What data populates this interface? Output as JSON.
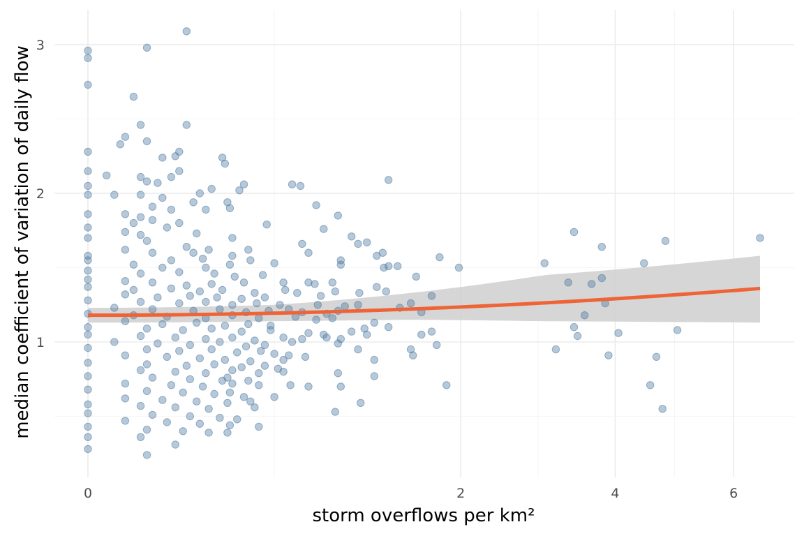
{
  "chart_data": {
    "type": "scatter",
    "title": "",
    "xlabel": "storm overflows per km²",
    "ylabel": "median coefficient of variation of daily flow",
    "x_scale": "sqrt",
    "x_ticks": [
      0,
      2,
      4,
      6
    ],
    "y_ticks": [
      1,
      2,
      3
    ],
    "xlim": [
      0,
      6.5
    ],
    "ylim": [
      0.2,
      3.1
    ],
    "grid": true,
    "legend": "none",
    "point_color": "#4a78a0",
    "trend_color": "#ee6436",
    "band_color": "#cfcfcf",
    "trend": {
      "x": [
        0,
        6.5
      ],
      "y": [
        1.18,
        1.36
      ]
    },
    "confidence_band": {
      "x": [
        0,
        0.5,
        1.5,
        3,
        6.5
      ],
      "upper": [
        1.23,
        1.25,
        1.33,
        1.45,
        1.58
      ],
      "lower": [
        1.13,
        1.14,
        1.15,
        1.14,
        1.13
      ]
    },
    "points": [
      [
        0,
        2.96
      ],
      [
        0,
        2.91
      ],
      [
        0,
        2.73
      ],
      [
        0.05,
        2.98
      ],
      [
        0.14,
        3.09
      ],
      [
        0.03,
        2.65
      ],
      [
        0.04,
        2.46
      ],
      [
        0.14,
        2.46
      ],
      [
        0.02,
        2.38
      ],
      [
        0.05,
        2.35
      ],
      [
        0.015,
        2.33
      ],
      [
        0,
        2.28
      ],
      [
        0.12,
        2.28
      ],
      [
        0.08,
        2.24
      ],
      [
        0.11,
        2.25
      ],
      [
        0.26,
        2.24
      ],
      [
        0.27,
        2.2
      ],
      [
        0,
        2.15
      ],
      [
        0.12,
        2.15
      ],
      [
        0.005,
        2.12
      ],
      [
        0.04,
        2.11
      ],
      [
        0.1,
        2.11
      ],
      [
        0.05,
        2.08
      ],
      [
        0,
        2.05
      ],
      [
        0.07,
        2.07
      ],
      [
        0.22,
        2.03
      ],
      [
        0.35,
        2.06
      ],
      [
        0.6,
        2.06
      ],
      [
        0.65,
        2.05
      ],
      [
        1.3,
        2.09
      ],
      [
        0.18,
        2.0
      ],
      [
        0.33,
        2.02
      ],
      [
        0,
        1.99
      ],
      [
        0.01,
        1.99
      ],
      [
        0.04,
        1.99
      ],
      [
        0.08,
        1.97
      ],
      [
        0.28,
        1.94
      ],
      [
        0.29,
        1.9
      ],
      [
        0.16,
        1.94
      ],
      [
        0.75,
        1.92
      ],
      [
        0.06,
        1.91
      ],
      [
        0.1,
        1.89
      ],
      [
        0.2,
        1.89
      ],
      [
        0.9,
        1.85
      ],
      [
        0,
        1.86
      ],
      [
        0.02,
        1.86
      ],
      [
        0.04,
        1.84
      ],
      [
        0.06,
        1.82
      ],
      [
        0.12,
        1.8
      ],
      [
        0.03,
        1.8
      ],
      [
        0,
        1.77
      ],
      [
        0.46,
        1.79
      ],
      [
        0.8,
        1.76
      ],
      [
        0.09,
        1.77
      ],
      [
        0.17,
        1.73
      ],
      [
        0.02,
        1.74
      ],
      [
        0.04,
        1.72
      ],
      [
        0.3,
        1.7
      ],
      [
        1.0,
        1.71
      ],
      [
        1.12,
        1.67
      ],
      [
        1.05,
        1.66
      ],
      [
        0.66,
        1.66
      ],
      [
        3.4,
        1.74
      ],
      [
        3.8,
        1.64
      ],
      [
        4.8,
        1.68
      ],
      [
        6.5,
        1.7
      ],
      [
        0,
        1.7
      ],
      [
        0.05,
        1.68
      ],
      [
        0.14,
        1.64
      ],
      [
        0.37,
        1.62
      ],
      [
        0.7,
        1.6
      ],
      [
        0.21,
        1.62
      ],
      [
        1.25,
        1.6
      ],
      [
        0.02,
        1.62
      ],
      [
        0.06,
        1.6
      ],
      [
        0.16,
        1.6
      ],
      [
        0.3,
        1.58
      ],
      [
        0,
        1.58
      ],
      [
        0.1,
        1.55
      ],
      [
        0.19,
        1.56
      ],
      [
        0.38,
        1.55
      ],
      [
        0.92,
        1.55
      ],
      [
        1.2,
        1.58
      ],
      [
        1.78,
        1.57
      ],
      [
        0,
        1.55
      ],
      [
        0.03,
        1.52
      ],
      [
        0.08,
        1.5
      ],
      [
        0.2,
        1.5
      ],
      [
        0.29,
        1.52
      ],
      [
        0.5,
        1.53
      ],
      [
        0.92,
        1.52
      ],
      [
        1.26,
        1.5
      ],
      [
        1.3,
        1.51
      ],
      [
        1.38,
        1.51
      ],
      [
        1.98,
        1.5
      ],
      [
        3.0,
        1.53
      ],
      [
        4.45,
        1.53
      ],
      [
        0,
        1.48
      ],
      [
        0.04,
        1.46
      ],
      [
        0.12,
        1.47
      ],
      [
        0.23,
        1.46
      ],
      [
        0.31,
        1.44
      ],
      [
        0.44,
        1.45
      ],
      [
        1.55,
        1.44
      ],
      [
        3.8,
        1.43
      ],
      [
        0,
        1.42
      ],
      [
        0.02,
        1.41
      ],
      [
        0.06,
        1.4
      ],
      [
        0.14,
        1.38
      ],
      [
        0.22,
        1.39
      ],
      [
        0.35,
        1.4
      ],
      [
        0.55,
        1.4
      ],
      [
        0.7,
        1.4
      ],
      [
        0.74,
        1.39
      ],
      [
        0.86,
        1.4
      ],
      [
        1.2,
        1.37
      ],
      [
        1.28,
        1.34
      ],
      [
        3.65,
        1.39
      ],
      [
        3.32,
        1.4
      ],
      [
        0,
        1.37
      ],
      [
        0.03,
        1.35
      ],
      [
        0.1,
        1.36
      ],
      [
        0.18,
        1.34
      ],
      [
        0.26,
        1.35
      ],
      [
        0.4,
        1.33
      ],
      [
        0.56,
        1.35
      ],
      [
        0.63,
        1.33
      ],
      [
        0.88,
        1.34
      ],
      [
        1.06,
        1.33
      ],
      [
        0.02,
        1.32
      ],
      [
        0.07,
        1.3
      ],
      [
        0.15,
        1.31
      ],
      [
        0.24,
        1.3
      ],
      [
        0.34,
        1.29
      ],
      [
        0.45,
        1.3
      ],
      [
        0.78,
        1.31
      ],
      [
        1.7,
        1.31
      ],
      [
        0,
        1.28
      ],
      [
        0.04,
        1.27
      ],
      [
        0.12,
        1.26
      ],
      [
        0.2,
        1.27
      ],
      [
        0.3,
        1.25
      ],
      [
        0.41,
        1.26
      ],
      [
        0.53,
        1.25
      ],
      [
        0.76,
        1.25
      ],
      [
        0.95,
        1.24
      ],
      [
        1.05,
        1.25
      ],
      [
        1.5,
        1.26
      ],
      [
        3.85,
        1.26
      ],
      [
        0.01,
        1.23
      ],
      [
        0.06,
        1.22
      ],
      [
        0.16,
        1.21
      ],
      [
        0.25,
        1.22
      ],
      [
        0.36,
        1.2
      ],
      [
        0.47,
        1.21
      ],
      [
        0.58,
        1.22
      ],
      [
        0.66,
        1.2
      ],
      [
        0.82,
        1.19
      ],
      [
        0.9,
        1.21
      ],
      [
        1.4,
        1.23
      ],
      [
        1.6,
        1.2
      ],
      [
        3.55,
        1.18
      ],
      [
        0,
        1.19
      ],
      [
        0.03,
        1.18
      ],
      [
        0.09,
        1.17
      ],
      [
        0.2,
        1.16
      ],
      [
        0.3,
        1.18
      ],
      [
        0.42,
        1.16
      ],
      [
        0.62,
        1.17
      ],
      [
        0.75,
        1.15
      ],
      [
        0.86,
        1.16
      ],
      [
        1.18,
        1.13
      ],
      [
        0.02,
        1.14
      ],
      [
        0.08,
        1.12
      ],
      [
        0.17,
        1.13
      ],
      [
        0.27,
        1.11
      ],
      [
        0.37,
        1.12
      ],
      [
        0.48,
        1.11
      ],
      [
        0.0,
        1.1
      ],
      [
        0.05,
        1.09
      ],
      [
        0.13,
        1.08
      ],
      [
        0.22,
        1.09
      ],
      [
        0.34,
        1.07
      ],
      [
        0.48,
        1.08
      ],
      [
        0.7,
        1.06
      ],
      [
        0.8,
        1.05
      ],
      [
        1.0,
        1.07
      ],
      [
        1.1,
        1.09
      ],
      [
        1.3,
        1.1
      ],
      [
        1.7,
        1.07
      ],
      [
        3.4,
        1.1
      ],
      [
        4.05,
        1.06
      ],
      [
        5.0,
        1.08
      ],
      [
        0,
        1.05
      ],
      [
        0.04,
        1.04
      ],
      [
        0.11,
        1.03
      ],
      [
        0.2,
        1.02
      ],
      [
        0.3,
        1.03
      ],
      [
        0.4,
        1.01
      ],
      [
        0.55,
        1.03
      ],
      [
        0.66,
        1.02
      ],
      [
        0.82,
        1.03
      ],
      [
        0.92,
        1.02
      ],
      [
        1.12,
        1.05
      ],
      [
        1.6,
        1.05
      ],
      [
        3.45,
        1.04
      ],
      [
        0.01,
        1.0
      ],
      [
        0.07,
        0.99
      ],
      [
        0.15,
        0.98
      ],
      [
        0.25,
        1.0
      ],
      [
        0.36,
        0.97
      ],
      [
        0.45,
        0.98
      ],
      [
        0.6,
        1.0
      ],
      [
        0.9,
        0.99
      ],
      [
        1.75,
        0.98
      ],
      [
        0,
        0.96
      ],
      [
        0.05,
        0.95
      ],
      [
        0.12,
        0.94
      ],
      [
        0.22,
        0.95
      ],
      [
        0.32,
        0.93
      ],
      [
        0.43,
        0.94
      ],
      [
        0.5,
        0.92
      ],
      [
        0.58,
        0.91
      ],
      [
        1.05,
        0.95
      ],
      [
        1.5,
        0.95
      ],
      [
        1.52,
        0.91
      ],
      [
        3.15,
        0.95
      ],
      [
        3.9,
        0.91
      ],
      [
        4.65,
        0.9
      ],
      [
        0.02,
        0.91
      ],
      [
        0.09,
        0.9
      ],
      [
        0.18,
        0.89
      ],
      [
        0.27,
        0.88
      ],
      [
        0.38,
        0.87
      ],
      [
        0.55,
        0.88
      ],
      [
        0.68,
        0.9
      ],
      [
        1.18,
        0.88
      ],
      [
        0,
        0.86
      ],
      [
        0.05,
        0.85
      ],
      [
        0.14,
        0.84
      ],
      [
        0.23,
        0.85
      ],
      [
        0.34,
        0.83
      ],
      [
        0.45,
        0.84
      ],
      [
        0.52,
        0.82
      ],
      [
        0.04,
        0.81
      ],
      [
        0.11,
        0.8
      ],
      [
        0.2,
        0.79
      ],
      [
        0.3,
        0.81
      ],
      [
        0.42,
        0.79
      ],
      [
        0.55,
        0.8
      ],
      [
        0.9,
        0.79
      ],
      [
        1.18,
        0.77
      ],
      [
        0,
        0.77
      ],
      [
        0.06,
        0.76
      ],
      [
        0.15,
        0.75
      ],
      [
        0.26,
        0.74
      ],
      [
        0.28,
        0.76
      ],
      [
        0.37,
        0.74
      ],
      [
        0.02,
        0.72
      ],
      [
        0.1,
        0.71
      ],
      [
        0.19,
        0.7
      ],
      [
        0.3,
        0.72
      ],
      [
        0.42,
        0.71
      ],
      [
        0.59,
        0.71
      ],
      [
        0.7,
        0.7
      ],
      [
        0.92,
        0.7
      ],
      [
        1.85,
        0.71
      ],
      [
        4.55,
        0.71
      ],
      [
        0,
        0.68
      ],
      [
        0.05,
        0.67
      ],
      [
        0.13,
        0.66
      ],
      [
        0.23,
        0.65
      ],
      [
        0.29,
        0.66
      ],
      [
        0.35,
        0.63
      ],
      [
        0.5,
        0.63
      ],
      [
        0.02,
        0.62
      ],
      [
        0.08,
        0.61
      ],
      [
        0.17,
        0.6
      ],
      [
        0.28,
        0.59
      ],
      [
        0.38,
        0.6
      ],
      [
        0.0,
        0.58
      ],
      [
        0.04,
        0.57
      ],
      [
        0.11,
        0.56
      ],
      [
        0.21,
        0.55
      ],
      [
        0.4,
        0.56
      ],
      [
        1.07,
        0.59
      ],
      [
        0.88,
        0.53
      ],
      [
        4.75,
        0.55
      ],
      [
        0,
        0.52
      ],
      [
        0.06,
        0.51
      ],
      [
        0.15,
        0.5
      ],
      [
        0.25,
        0.49
      ],
      [
        0.32,
        0.48
      ],
      [
        0.02,
        0.47
      ],
      [
        0.09,
        0.46
      ],
      [
        0.18,
        0.45
      ],
      [
        0.29,
        0.44
      ],
      [
        0.42,
        0.43
      ],
      [
        0,
        0.43
      ],
      [
        0.05,
        0.41
      ],
      [
        0.13,
        0.4
      ],
      [
        0.21,
        0.39
      ],
      [
        0.28,
        0.39
      ],
      [
        0.04,
        0.36
      ],
      [
        0,
        0.36
      ],
      [
        0.11,
        0.31
      ],
      [
        0,
        0.28
      ],
      [
        0.05,
        0.24
      ]
    ]
  }
}
